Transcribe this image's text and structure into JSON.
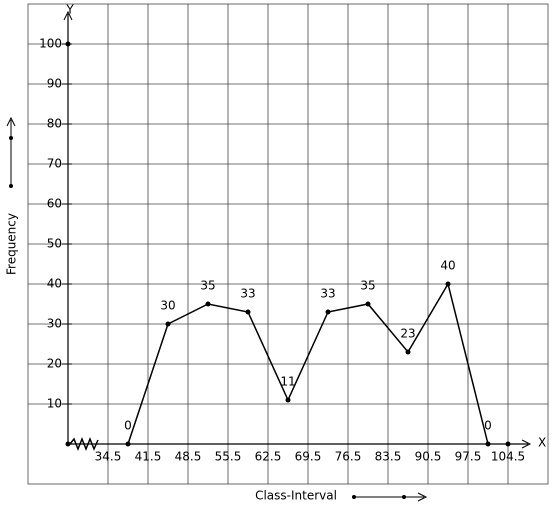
{
  "chart_data": {
    "type": "line",
    "x_label": "Class-Interval",
    "y_label": "Frequency",
    "x_axis_name": "X",
    "y_axis_name": "Y",
    "x": [
      38,
      45,
      52,
      59,
      66,
      73,
      80,
      87,
      94,
      101
    ],
    "values": [
      0,
      30,
      35,
      33,
      11,
      33,
      35,
      23,
      40,
      0
    ],
    "color": "#000000",
    "xlim": [
      20.5,
      111.5
    ],
    "xticks": [
      34.5,
      41.5,
      48.5,
      55.5,
      62.5,
      69.5,
      76.5,
      83.5,
      90.5,
      97.5,
      104.5
    ],
    "ylim": [
      -10,
      110
    ],
    "yticks": [
      10,
      20,
      30,
      40,
      50,
      60,
      70,
      80,
      90,
      100
    ],
    "grid": true
  }
}
